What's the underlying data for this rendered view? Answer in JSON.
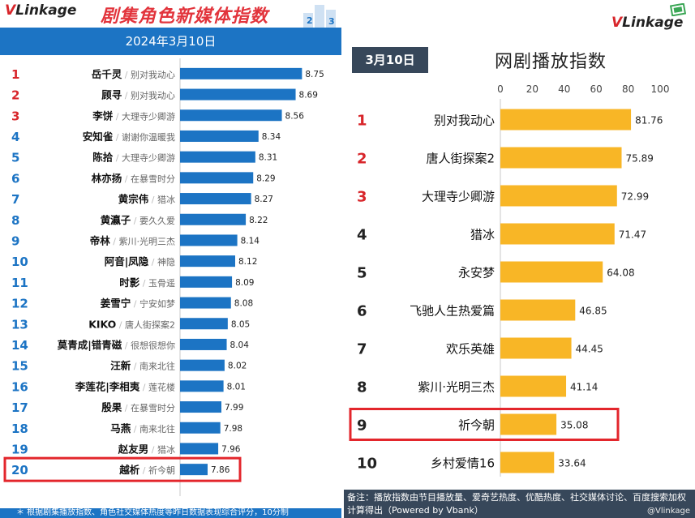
{
  "left": {
    "logo_v": "V",
    "logo_rest": "Linkage",
    "title": "剧集角色新媒体指数",
    "date": "2024年3月10日",
    "footer": "＊ 根据剧集播放指数、角色社交媒体热度等昨日数据表现综合评分，10分制",
    "colors": {
      "bar": "#1c74c4",
      "rank": "#d8262b",
      "rank_other": "#1c74c4",
      "highlight": "#e3262c",
      "header": "#1c74c4"
    }
  },
  "right": {
    "logo_v": "V",
    "logo_rest": "Linkage",
    "date": "3月10日",
    "title": "网剧播放指数",
    "footer": "备注：播放指数由节目播放量、爱奇艺热度、优酷热度、社交媒体讨论、百度搜索加权计算得出（Powered by Vbank）",
    "watermark": "@Vlinkage",
    "colors": {
      "bar": "#f8b626",
      "rank": "#d8262b",
      "rank_other": "#222222",
      "highlight": "#e3262c",
      "header": "#37475a"
    }
  },
  "chart_data": [
    {
      "type": "bar",
      "title": "剧集角色新媒体指数",
      "subtitle": "2024年3月10日",
      "orientation": "horizontal",
      "ranks": [
        "1",
        "2",
        "3",
        "4",
        "5",
        "6",
        "7",
        "8",
        "9",
        "10",
        "11",
        "12",
        "13",
        "14",
        "15",
        "16",
        "17",
        "18",
        "19",
        "20"
      ],
      "categories": [
        "岳千灵",
        "顾寻",
        "李饼",
        "安知雀",
        "陈拾",
        "林亦扬",
        "黄宗伟",
        "黄瀛子",
        "帝林",
        "阿音|凤隐",
        "时影",
        "姜雪宁",
        "KIKO",
        "莫青成|错青磁",
        "汪新",
        "李莲花|李相夷",
        "殷果",
        "马燕",
        "赵友男",
        "越析"
      ],
      "dramas": [
        "别对我动心",
        "别对我动心",
        "大理寺少卿游",
        "谢谢你温暖我",
        "大理寺少卿游",
        "在暴雪时分",
        "猎冰",
        "要久久爱",
        "紫川·光明三杰",
        "神隐",
        "玉骨遥",
        "宁安如梦",
        "唐人街探案2",
        "很想很想你",
        "南来北往",
        "莲花楼",
        "在暴雪时分",
        "南来北往",
        "猎冰",
        "祈今朝"
      ],
      "values": [
        8.75,
        8.69,
        8.56,
        8.34,
        8.31,
        8.29,
        8.27,
        8.22,
        8.14,
        8.12,
        8.09,
        8.08,
        8.05,
        8.04,
        8.02,
        8.01,
        7.99,
        7.98,
        7.96,
        7.86
      ],
      "xlim": [
        7.6,
        8.9
      ],
      "highlight_index": 19
    },
    {
      "type": "bar",
      "title": "网剧播放指数",
      "subtitle": "3月10日",
      "orientation": "horizontal",
      "ranks": [
        "1",
        "2",
        "3",
        "4",
        "5",
        "6",
        "7",
        "8",
        "9",
        "10"
      ],
      "categories": [
        "别对我动心",
        "唐人街探案2",
        "大理寺少卿游",
        "猎冰",
        "永安梦",
        "飞驰人生热爱篇",
        "欢乐英雄",
        "紫川·光明三杰",
        "祈今朝",
        "乡村爱情16"
      ],
      "values": [
        81.76,
        75.89,
        72.99,
        71.47,
        64.08,
        46.85,
        44.45,
        41.14,
        35.08,
        33.64
      ],
      "xlim": [
        0,
        100
      ],
      "xticks": [
        "0",
        "20",
        "40",
        "60",
        "80",
        "100"
      ],
      "highlight_index": 8
    }
  ]
}
